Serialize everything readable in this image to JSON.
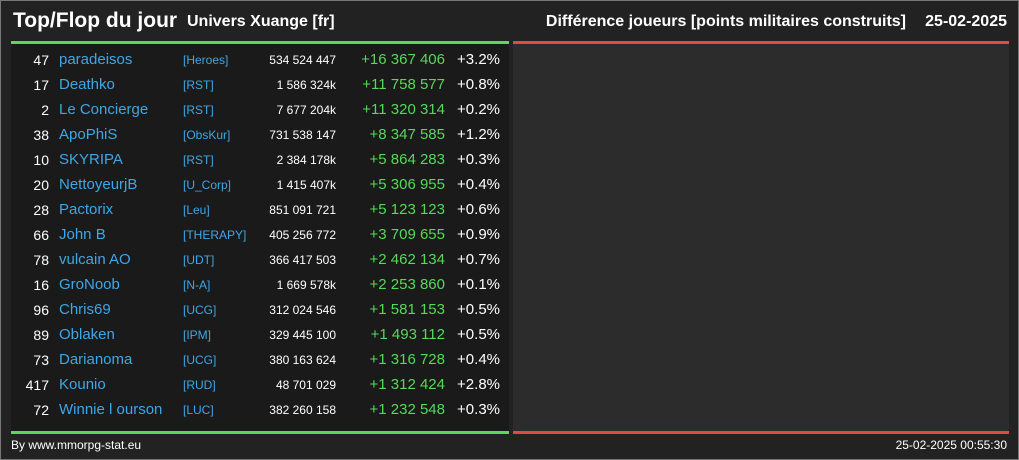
{
  "header": {
    "title": "Top/Flop du jour",
    "universe": "Univers Xuange [fr]",
    "metric": "Différence joueurs [points militaires construits]",
    "date": "25-02-2025"
  },
  "rows": [
    {
      "rank": "47",
      "name": "paradeisos",
      "alliance": "[Heroes]",
      "points": "534 524 447",
      "delta": "+16 367 406",
      "percent": "+3.2%"
    },
    {
      "rank": "17",
      "name": "Deathko",
      "alliance": "[RST]",
      "points": "1 586 324k",
      "delta": "+11 758 577",
      "percent": "+0.8%"
    },
    {
      "rank": "2",
      "name": "Le Concierge",
      "alliance": "[RST]",
      "points": "7 677 204k",
      "delta": "+11 320 314",
      "percent": "+0.2%"
    },
    {
      "rank": "38",
      "name": "ApoPhiS",
      "alliance": "[ObsKur]",
      "points": "731 538 147",
      "delta": "+8 347 585",
      "percent": "+1.2%"
    },
    {
      "rank": "10",
      "name": "SKYRIPA",
      "alliance": "[RST]",
      "points": "2 384 178k",
      "delta": "+5 864 283",
      "percent": "+0.3%"
    },
    {
      "rank": "20",
      "name": "NettoyeurjB",
      "alliance": "[U_Corp]",
      "points": "1 415 407k",
      "delta": "+5 306 955",
      "percent": "+0.4%"
    },
    {
      "rank": "28",
      "name": "Pactorix",
      "alliance": "[Leu]",
      "points": "851 091 721",
      "delta": "+5 123 123",
      "percent": "+0.6%"
    },
    {
      "rank": "66",
      "name": "John B",
      "alliance": "[THERAPY]",
      "points": "405 256 772",
      "delta": "+3 709 655",
      "percent": "+0.9%"
    },
    {
      "rank": "78",
      "name": "vulcain AO",
      "alliance": "[UDT]",
      "points": "366 417 503",
      "delta": "+2 462 134",
      "percent": "+0.7%"
    },
    {
      "rank": "16",
      "name": "GroNoob",
      "alliance": "[N-A]",
      "points": "1 669 578k",
      "delta": "+2 253 860",
      "percent": "+0.1%"
    },
    {
      "rank": "96",
      "name": "Chris69",
      "alliance": "[UCG]",
      "points": "312 024 546",
      "delta": "+1 581 153",
      "percent": "+0.5%"
    },
    {
      "rank": "89",
      "name": "Oblaken",
      "alliance": "[IPM]",
      "points": "329 445 100",
      "delta": "+1 493 112",
      "percent": "+0.5%"
    },
    {
      "rank": "73",
      "name": "Darianoma",
      "alliance": "[UCG]",
      "points": "380 163 624",
      "delta": "+1 316 728",
      "percent": "+0.4%"
    },
    {
      "rank": "417",
      "name": "Kounio",
      "alliance": "[RUD]",
      "points": "48 701 029",
      "delta": "+1 312 424",
      "percent": "+2.8%"
    },
    {
      "rank": "72",
      "name": "Winnie l ourson",
      "alliance": "[LUC]",
      "points": "382 260 158",
      "delta": "+1 232 548",
      "percent": "+0.3%"
    }
  ],
  "footer": {
    "credit": "By www.mmorpg-stat.eu",
    "timestamp": "25-02-2025 00:55:30"
  },
  "colors": {
    "top_line": "#5ad85a",
    "flop_line": "#dd4b45",
    "name": "#3ea7e6",
    "delta": "#56d85a"
  }
}
